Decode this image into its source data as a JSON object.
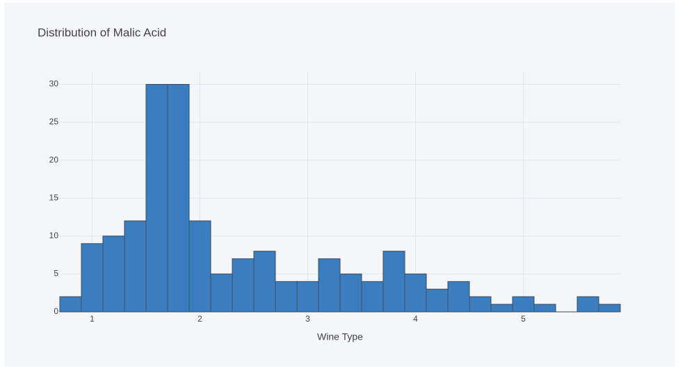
{
  "chart_data": {
    "type": "histogram",
    "title": "Distribution of Malic Acid",
    "x_label": "Wine Type",
    "bins": [
      0.7,
      0.9,
      1.1,
      1.3,
      1.5,
      1.7,
      1.9,
      2.1,
      2.3,
      2.5,
      2.7,
      2.9,
      3.1,
      3.3,
      3.5,
      3.7,
      3.9,
      4.1,
      4.3,
      4.5,
      4.7,
      4.9,
      5.1,
      5.3,
      5.5,
      5.7,
      5.9
    ],
    "values": [
      2,
      9,
      10,
      12,
      30,
      30,
      12,
      5,
      7,
      8,
      4,
      4,
      7,
      5,
      4,
      8,
      5,
      3,
      4,
      2,
      1,
      2,
      1,
      0,
      2,
      1
    ],
    "color": "#3a7ebf",
    "xlim": [
      0.7,
      5.9
    ],
    "xticks": [
      1,
      2,
      3,
      4,
      5
    ],
    "ylim": [
      0,
      31.6
    ],
    "yticks": [
      0,
      5,
      10,
      15,
      20,
      25,
      30
    ],
    "grid": true
  }
}
